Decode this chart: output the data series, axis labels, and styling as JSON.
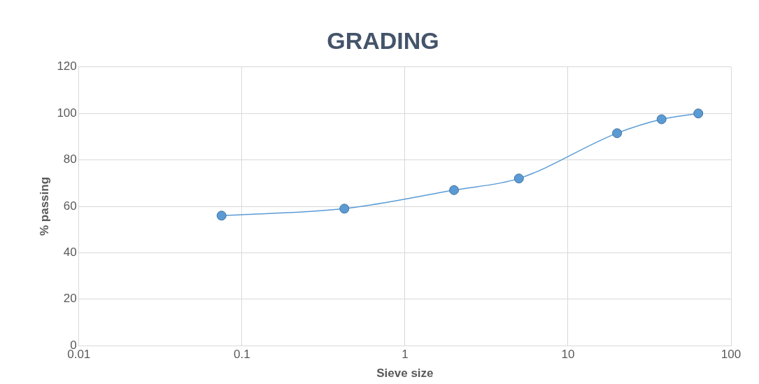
{
  "chart_data": {
    "type": "line",
    "title": "GRADING",
    "xlabel": "Sieve size",
    "ylabel": "% passing",
    "log": "x",
    "x": [
      0.075,
      0.425,
      2,
      5,
      20,
      37.5,
      63
    ],
    "series": [
      {
        "color": "#5b9bd5",
        "values": [
          56,
          59,
          67,
          72,
          91.5,
          97.5,
          100
        ]
      }
    ],
    "xlim": [
      0.01,
      100
    ],
    "xticks": [
      0.01,
      0.1,
      1,
      10,
      100
    ],
    "ylim": [
      0,
      120
    ],
    "yticks": [
      0,
      20,
      40,
      60,
      80,
      100,
      120
    ],
    "grid": true,
    "legend": false,
    "marker": "circle",
    "line_style": "solid"
  }
}
